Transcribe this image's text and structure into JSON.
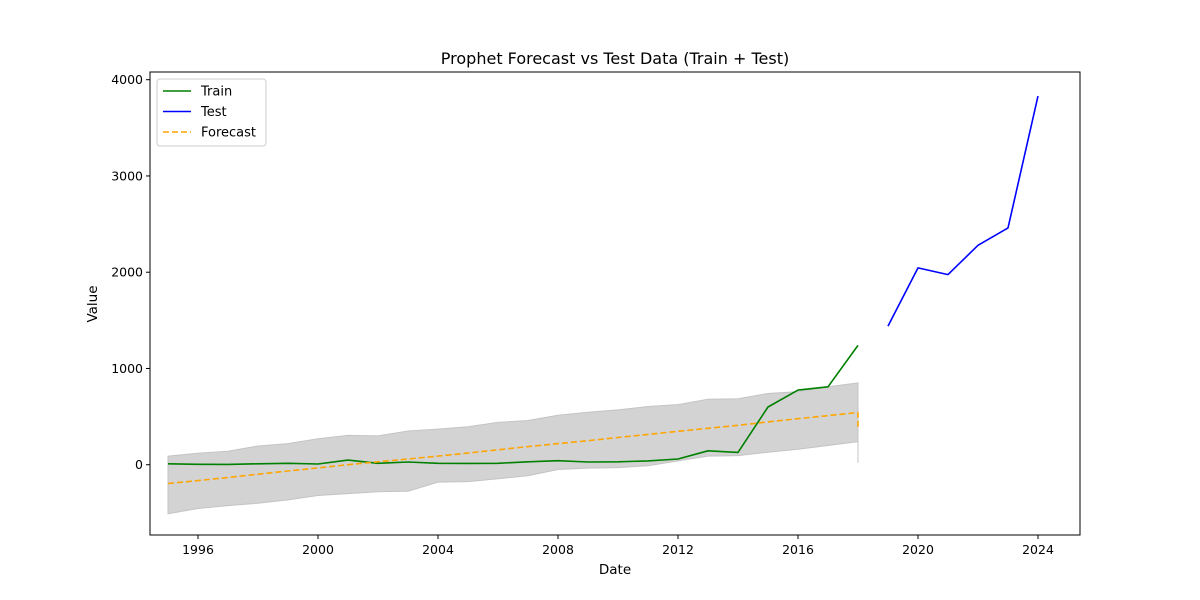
{
  "chart_data": {
    "type": "line",
    "title": "Prophet Forecast vs Test Data (Train + Test)",
    "xlabel": "Date",
    "ylabel": "Value",
    "xlim": [
      1994.4,
      2025.4
    ],
    "ylim": [
      -730,
      4080
    ],
    "xticks": [
      1996,
      2000,
      2004,
      2008,
      2012,
      2016,
      2020,
      2024
    ],
    "xtick_labels": [
      "1996",
      "2000",
      "2004",
      "2008",
      "2012",
      "2016",
      "2020",
      "2024"
    ],
    "yticks": [
      0,
      1000,
      2000,
      3000,
      4000
    ],
    "ytick_labels": [
      "0",
      "1000",
      "2000",
      "3000",
      "4000"
    ],
    "legend_position": "top-left",
    "grid": false,
    "series": [
      {
        "name": "Train",
        "color": "#008000",
        "style": "solid",
        "x": [
          1995,
          1996,
          1997,
          1998,
          1999,
          2000,
          2001,
          2002,
          2003,
          2004,
          2005,
          2006,
          2007,
          2008,
          2009,
          2010,
          2011,
          2012,
          2013,
          2014,
          2015,
          2016,
          2017,
          2018
        ],
        "y": [
          10,
          5,
          3,
          10,
          15,
          8,
          48,
          15,
          28,
          15,
          14,
          15,
          30,
          42,
          28,
          30,
          40,
          60,
          145,
          128,
          600,
          775,
          810,
          1240
        ]
      },
      {
        "name": "Test",
        "color": "#0000ff",
        "style": "solid",
        "x": [
          2019,
          2020,
          2021,
          2022,
          2023,
          2024
        ],
        "y": [
          1440,
          2045,
          1975,
          2280,
          2460,
          3830
        ]
      },
      {
        "name": "Forecast",
        "color": "#ffa500",
        "style": "dashed",
        "x": [
          1995,
          1996,
          1997,
          1998,
          1999,
          2000,
          2001,
          2002,
          2003,
          2004,
          2005,
          2006,
          2007,
          2008,
          2009,
          2010,
          2011,
          2012,
          2013,
          2014,
          2015,
          2016,
          2017,
          2018,
          2018
        ],
        "y": [
          -195,
          -165,
          -133,
          -98,
          -65,
          -33,
          0,
          30,
          60,
          90,
          122,
          155,
          188,
          220,
          250,
          283,
          315,
          347,
          378,
          410,
          445,
          478,
          510,
          543,
          370
        ]
      }
    ],
    "band": {
      "color": "#d3d3d3",
      "x": [
        1995,
        1996,
        1997,
        1998,
        1999,
        2000,
        2001,
        2002,
        2003,
        2004,
        2005,
        2006,
        2007,
        2008,
        2009,
        2010,
        2011,
        2012,
        2013,
        2014,
        2015,
        2016,
        2017,
        2018,
        2018
      ],
      "lower": [
        -510,
        -455,
        -425,
        -400,
        -365,
        -320,
        -300,
        -280,
        -275,
        -180,
        -175,
        -145,
        -115,
        -50,
        -35,
        -30,
        -10,
        40,
        90,
        95,
        130,
        160,
        200,
        240,
        20
      ],
      "upper": [
        90,
        120,
        140,
        195,
        220,
        270,
        305,
        300,
        350,
        370,
        395,
        440,
        460,
        515,
        545,
        570,
        605,
        625,
        680,
        685,
        740,
        760,
        810,
        850,
        850
      ]
    }
  }
}
